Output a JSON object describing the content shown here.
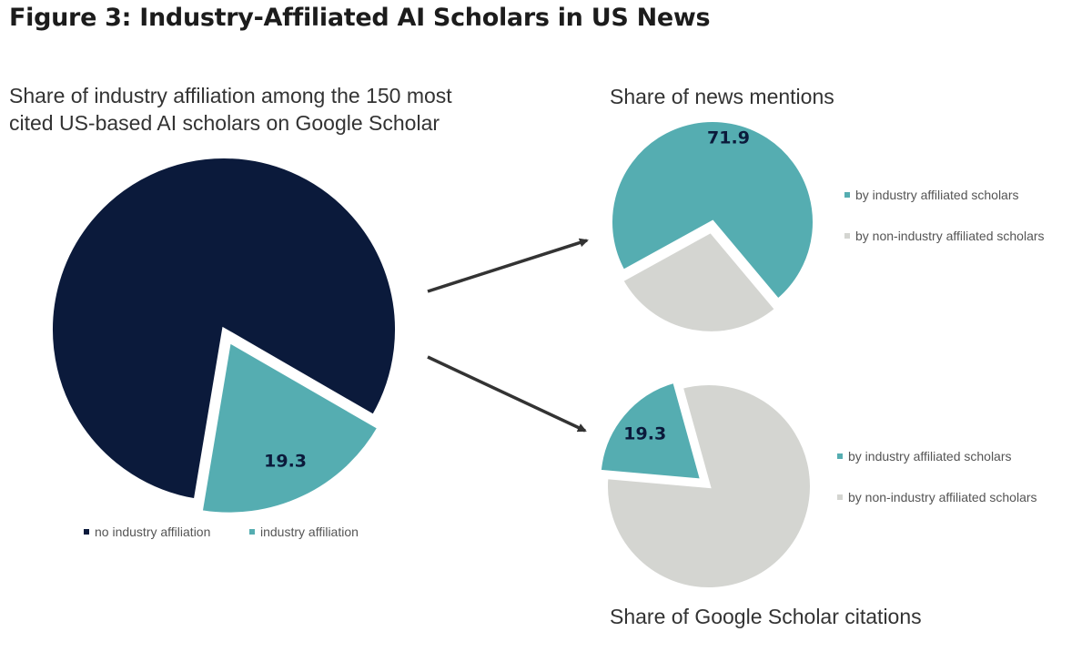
{
  "figure_title": "Figure 3: Industry-Affiliated AI Scholars in US News",
  "colors": {
    "navy": "#0b1a3b",
    "teal": "#55adb1",
    "gray": "#d4d5d1",
    "arrow": "#333333"
  },
  "chart_data": [
    {
      "type": "pie",
      "title": "Share of industry affiliation among  the 150 most cited US-based AI scholars on Google Scholar",
      "slices": [
        {
          "label": "no industry affiliation",
          "value": 80.7,
          "color": "#0b1a3b",
          "shown_label": ""
        },
        {
          "label": "industry affiliation",
          "value": 19.3,
          "color": "#55adb1",
          "shown_label": "19.3"
        }
      ],
      "legend": [
        "no industry affiliation",
        "industry affiliation"
      ],
      "legend_position": "bottom"
    },
    {
      "type": "pie",
      "title": "Share of news mentions",
      "slices": [
        {
          "label": "by industry affiliated scholars",
          "value": 71.9,
          "color": "#55adb1",
          "shown_label": "71.9"
        },
        {
          "label": "by non-industry affiliated scholars",
          "value": 28.1,
          "color": "#d4d5d1",
          "shown_label": ""
        }
      ],
      "legend": [
        "by industry affiliated scholars",
        "by non-industry affiliated scholars"
      ],
      "legend_position": "right"
    },
    {
      "type": "pie",
      "title": "Share of Google Scholar citations",
      "slices": [
        {
          "label": "by industry affiliated scholars",
          "value": 19.3,
          "color": "#55adb1",
          "shown_label": "19.3"
        },
        {
          "label": "by non-industry affiliated scholars",
          "value": 80.7,
          "color": "#d4d5d1",
          "shown_label": ""
        }
      ],
      "legend": [
        "by industry affiliated scholars",
        "by non-industry affiliated scholars"
      ],
      "legend_position": "right"
    }
  ]
}
